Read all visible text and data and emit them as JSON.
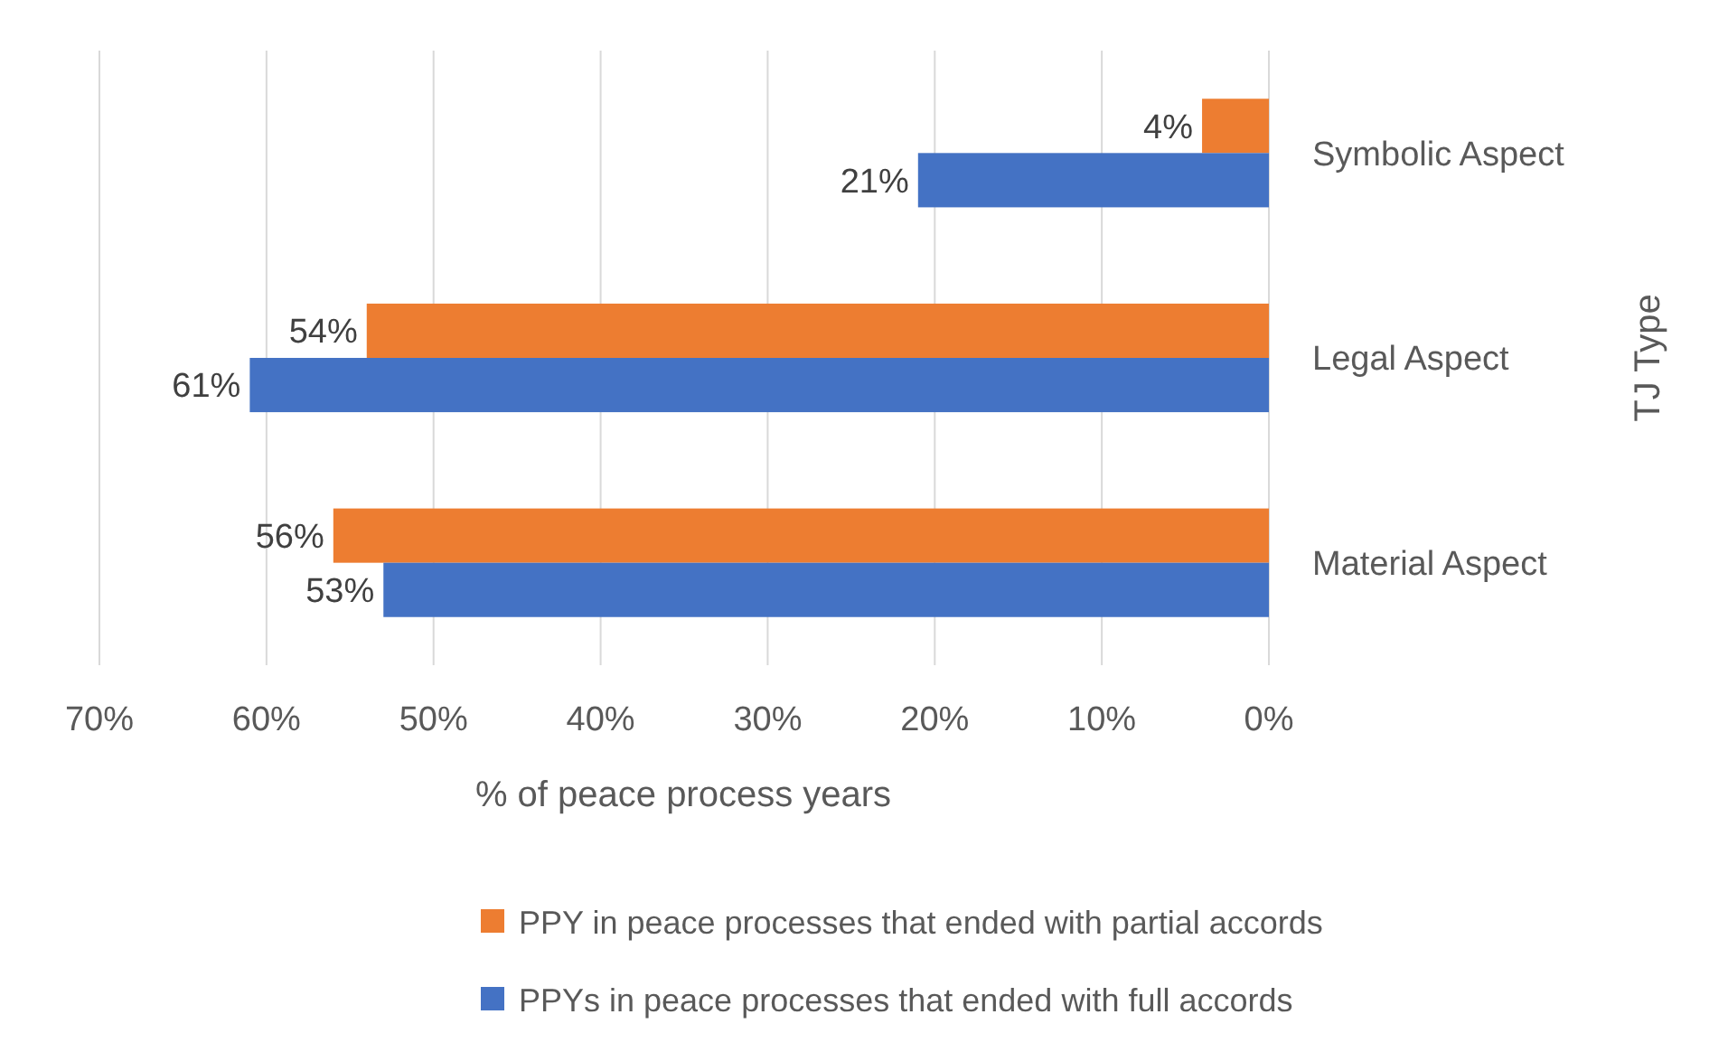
{
  "chart_data": {
    "type": "bar",
    "orientation": "horizontal",
    "xlabel": "% of peace process years",
    "ylabel": "TJ Type",
    "categories": [
      "Symbolic Aspect",
      "Legal Aspect",
      "Material Aspect"
    ],
    "series": [
      {
        "name": "PPY in peace processes that ended with partial accords",
        "color": "#ed7d31",
        "values": [
          4,
          54,
          56
        ],
        "value_labels": [
          "4%",
          "54%",
          "56%"
        ]
      },
      {
        "name": "PPYs in peace processes that ended with full accords",
        "color": "#4472c4",
        "values": [
          21,
          61,
          53
        ],
        "value_labels": [
          "21%",
          "61%",
          "53%"
        ]
      }
    ],
    "xlim": [
      70,
      0
    ],
    "xticks": [
      {
        "value": 70,
        "label": "70%"
      },
      {
        "value": 60,
        "label": "60%"
      },
      {
        "value": 50,
        "label": "50%"
      },
      {
        "value": 40,
        "label": "40%"
      },
      {
        "value": 30,
        "label": "30%"
      },
      {
        "value": 20,
        "label": "20%"
      },
      {
        "value": 10,
        "label": "10%"
      },
      {
        "value": 0,
        "label": "0%"
      }
    ],
    "grid": "x",
    "legend": "bottom"
  }
}
